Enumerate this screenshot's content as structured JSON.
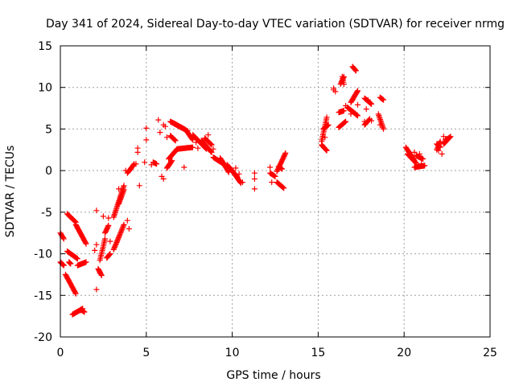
{
  "chart_data": {
    "type": "scatter",
    "title": "Day 341 of 2024, Sidereal Day-to-day VTEC variation (SDTVAR) for receiver nrmg",
    "xlabel": "GPS time / hours",
    "ylabel": "SDTVAR / TECUs",
    "xlim": [
      0,
      25
    ],
    "ylim": [
      -20,
      15
    ],
    "xticks": [
      0,
      5,
      10,
      15,
      20,
      25
    ],
    "yticks": [
      -20,
      -15,
      -10,
      -5,
      0,
      5,
      10,
      15
    ],
    "grid": true,
    "marker": "plus",
    "color": "#ff0000",
    "series": [
      {
        "name": "SDTVAR",
        "segments": [
          {
            "x0": 0.0,
            "y0": -7.5,
            "x1": 0.2,
            "y1": -8.2
          },
          {
            "x0": 0.0,
            "y0": -11.0,
            "x1": 0.2,
            "y1": -11.4
          },
          {
            "x0": 0.3,
            "y0": -12.5,
            "x1": 0.9,
            "y1": -14.8
          },
          {
            "x0": 0.4,
            "y0": -9.7,
            "x1": 1.0,
            "y1": -10.6
          },
          {
            "x0": 0.4,
            "y0": -5.2,
            "x1": 0.9,
            "y1": -6.2
          },
          {
            "x0": 0.5,
            "y0": -11.0,
            "x1": 0.6,
            "y1": -11.2
          },
          {
            "x0": 0.7,
            "y0": -17.3,
            "x1": 1.3,
            "y1": -16.6
          },
          {
            "x0": 0.9,
            "y0": -6.5,
            "x1": 1.5,
            "y1": -8.8
          },
          {
            "x0": 1.2,
            "y0": -16.7,
            "x1": 1.4,
            "y1": -17.0
          },
          {
            "x0": 1.0,
            "y0": -11.4,
            "x1": 1.5,
            "y1": -11.0
          },
          {
            "x0": 2.2,
            "y0": -11.8,
            "x1": 2.4,
            "y1": -12.6
          },
          {
            "x0": 2.3,
            "y0": -10.8,
            "x1": 2.6,
            "y1": -8.2
          },
          {
            "x0": 2.6,
            "y0": -7.5,
            "x1": 2.8,
            "y1": -6.6
          },
          {
            "x0": 2.7,
            "y0": -10.5,
            "x1": 2.9,
            "y1": -10.0
          },
          {
            "x0": 3.1,
            "y0": -9.5,
            "x1": 3.7,
            "y1": -6.5
          },
          {
            "x0": 3.1,
            "y0": -5.6,
            "x1": 3.7,
            "y1": -1.8
          },
          {
            "x0": 3.4,
            "y0": -4.0,
            "x1": 3.7,
            "y1": -2.3
          },
          {
            "x0": 3.9,
            "y0": -0.3,
            "x1": 4.3,
            "y1": 0.8
          },
          {
            "x0": 5.4,
            "y0": 1.0,
            "x1": 5.6,
            "y1": 0.8
          },
          {
            "x0": 6.4,
            "y0": 5.9,
            "x1": 7.3,
            "y1": 4.9
          },
          {
            "x0": 6.6,
            "y0": 5.7,
            "x1": 7.1,
            "y1": 5.1
          },
          {
            "x0": 6.4,
            "y0": 4.2,
            "x1": 6.7,
            "y1": 3.6
          },
          {
            "x0": 6.3,
            "y0": 1.4,
            "x1": 6.8,
            "y1": 2.6
          },
          {
            "x0": 6.2,
            "y0": 0.3,
            "x1": 6.5,
            "y1": 1.2
          },
          {
            "x0": 6.8,
            "y0": 2.6,
            "x1": 7.7,
            "y1": 2.8
          },
          {
            "x0": 7.3,
            "y0": 4.9,
            "x1": 7.7,
            "y1": 3.7
          },
          {
            "x0": 7.7,
            "y0": 4.3,
            "x1": 8.5,
            "y1": 2.6
          },
          {
            "x0": 8.2,
            "y0": 3.6,
            "x1": 8.8,
            "y1": 2.2
          },
          {
            "x0": 8.4,
            "y0": 3.9,
            "x1": 8.8,
            "y1": 3.1
          },
          {
            "x0": 8.9,
            "y0": 1.6,
            "x1": 9.5,
            "y1": 0.8
          },
          {
            "x0": 9.3,
            "y0": 1.5,
            "x1": 9.8,
            "y1": -0.2
          },
          {
            "x0": 9.7,
            "y0": 0.7,
            "x1": 10.3,
            "y1": -0.8
          },
          {
            "x0": 10.0,
            "y0": 0.0,
            "x1": 10.5,
            "y1": -1.5
          },
          {
            "x0": 12.2,
            "y0": -0.3,
            "x1": 12.5,
            "y1": -0.7
          },
          {
            "x0": 12.6,
            "y0": -0.1,
            "x1": 13.1,
            "y1": 2.1
          },
          {
            "x0": 12.6,
            "y0": -1.4,
            "x1": 13.0,
            "y1": -2.1
          },
          {
            "x0": 12.7,
            "y0": 0.5,
            "x1": 12.9,
            "y1": 0.2
          },
          {
            "x0": 15.2,
            "y0": 3.1,
            "x1": 15.5,
            "y1": 2.4
          },
          {
            "x0": 15.2,
            "y0": 3.5,
            "x1": 15.5,
            "y1": 6.4
          },
          {
            "x0": 15.3,
            "y0": 5.0,
            "x1": 15.6,
            "y1": 5.5
          },
          {
            "x0": 16.2,
            "y0": 5.2,
            "x1": 16.6,
            "y1": 5.9
          },
          {
            "x0": 16.2,
            "y0": 7.0,
            "x1": 16.5,
            "y1": 7.2
          },
          {
            "x0": 16.3,
            "y0": 10.4,
            "x1": 16.5,
            "y1": 11.3
          },
          {
            "x0": 16.4,
            "y0": 11.3,
            "x1": 16.5,
            "y1": 10.4
          },
          {
            "x0": 16.7,
            "y0": 7.6,
            "x1": 17.3,
            "y1": 6.6
          },
          {
            "x0": 16.9,
            "y0": 8.2,
            "x1": 17.3,
            "y1": 9.6
          },
          {
            "x0": 17.0,
            "y0": 12.5,
            "x1": 17.2,
            "y1": 12.0
          },
          {
            "x0": 17.7,
            "y0": 8.7,
            "x1": 18.1,
            "y1": 8.0
          },
          {
            "x0": 17.7,
            "y0": 5.5,
            "x1": 18.0,
            "y1": 6.2
          },
          {
            "x0": 18.5,
            "y0": 6.8,
            "x1": 18.8,
            "y1": 5.0
          },
          {
            "x0": 18.6,
            "y0": 8.8,
            "x1": 18.8,
            "y1": 8.5
          },
          {
            "x0": 20.1,
            "y0": 2.8,
            "x1": 20.6,
            "y1": 1.2
          },
          {
            "x0": 20.2,
            "y0": 2.0,
            "x1": 20.7,
            "y1": 0.9
          },
          {
            "x0": 20.6,
            "y0": 0.4,
            "x1": 21.2,
            "y1": 0.6
          },
          {
            "x0": 20.7,
            "y0": 1.8,
            "x1": 21.1,
            "y1": 1.4
          },
          {
            "x0": 21.9,
            "y0": 2.5,
            "x1": 22.1,
            "y1": 3.5
          },
          {
            "x0": 21.9,
            "y0": 3.2,
            "x1": 22.1,
            "y1": 2.8
          },
          {
            "x0": 22.3,
            "y0": 3.2,
            "x1": 22.7,
            "y1": 4.1
          },
          {
            "x0": 22.4,
            "y0": 3.7,
            "x1": 22.6,
            "y1": 3.9
          }
        ],
        "points": [
          [
            1.2,
            -16.8
          ],
          [
            2.1,
            -4.8
          ],
          [
            2.1,
            -14.3
          ],
          [
            2.3,
            -12.3
          ],
          [
            2.5,
            -5.5
          ],
          [
            2.8,
            -5.7
          ],
          [
            2.9,
            -8.5
          ],
          [
            2.1,
            -8.9
          ],
          [
            2.0,
            -9.6
          ],
          [
            3.4,
            -2.2
          ],
          [
            3.9,
            -6.0
          ],
          [
            4.0,
            -7.0
          ],
          [
            3.8,
            0.0
          ],
          [
            4.1,
            0.2
          ],
          [
            4.4,
            0.8
          ],
          [
            4.6,
            -1.8
          ],
          [
            4.5,
            2.2
          ],
          [
            4.5,
            2.7
          ],
          [
            4.9,
            1.0
          ],
          [
            5.0,
            3.7
          ],
          [
            5.0,
            5.1
          ],
          [
            5.3,
            0.7
          ],
          [
            5.7,
            6.1
          ],
          [
            6.0,
            5.5
          ],
          [
            6.1,
            5.3
          ],
          [
            5.8,
            4.6
          ],
          [
            6.0,
            -1.0
          ],
          [
            5.9,
            -0.7
          ],
          [
            6.2,
            4.0
          ],
          [
            7.2,
            0.4
          ],
          [
            7.4,
            4.8
          ],
          [
            7.9,
            3.4
          ],
          [
            8.0,
            2.7
          ],
          [
            8.6,
            4.3
          ],
          [
            8.9,
            2.6
          ],
          [
            9.3,
            1.3
          ],
          [
            10.2,
            0.3
          ],
          [
            10.4,
            -0.4
          ],
          [
            10.6,
            -1.4
          ],
          [
            11.3,
            -1.0
          ],
          [
            11.3,
            -2.2
          ],
          [
            11.3,
            -0.3
          ],
          [
            12.2,
            0.4
          ],
          [
            12.3,
            -1.4
          ],
          [
            15.4,
            4.0
          ],
          [
            15.9,
            9.7
          ],
          [
            15.9,
            9.9
          ],
          [
            16.0,
            9.5
          ],
          [
            16.6,
            7.8
          ],
          [
            16.9,
            6.8
          ],
          [
            17.3,
            7.9
          ],
          [
            17.7,
            5.9
          ],
          [
            17.8,
            7.4
          ],
          [
            17.9,
            8.5
          ],
          [
            18.1,
            6.0
          ],
          [
            18.6,
            5.5
          ],
          [
            20.6,
            2.2
          ],
          [
            20.9,
            2.0
          ],
          [
            22.3,
            4.1
          ],
          [
            22.0,
            2.4
          ],
          [
            22.2,
            2.0
          ],
          [
            20.8,
            0.5
          ],
          [
            21.0,
            0.8
          ]
        ]
      }
    ]
  }
}
